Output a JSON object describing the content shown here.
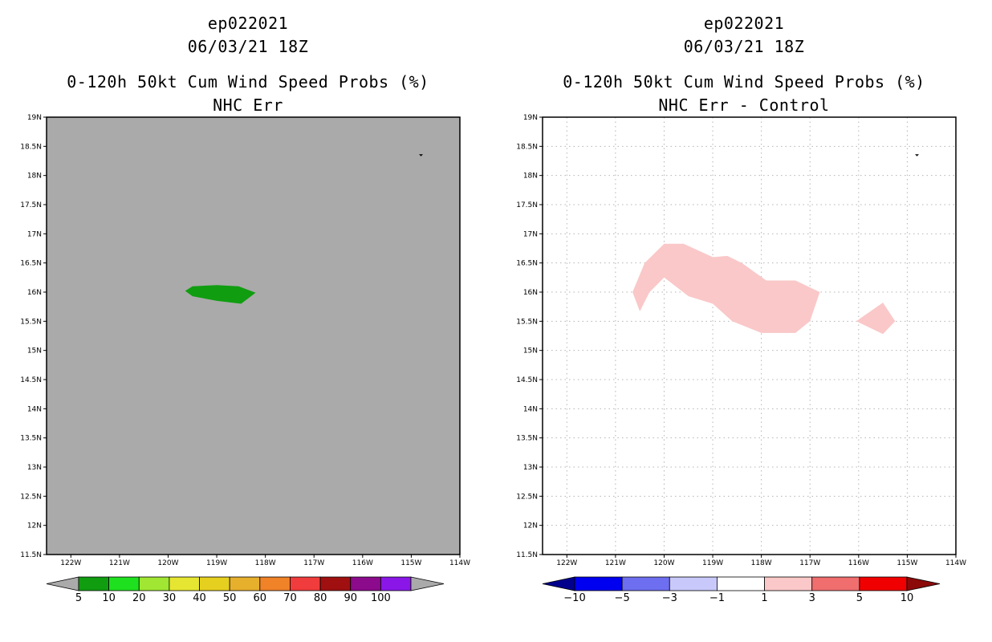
{
  "chart_data": [
    {
      "type": "map-contour",
      "title_lines": [
        "ep022021",
        "06/03/21 18Z",
        "0-120h 50kt Cum Wind Speed Probs (%)",
        "NHC Err"
      ],
      "background": "#aaaaaa",
      "grid": false,
      "xlim": [
        -122.5,
        -114
      ],
      "ylim": [
        11.5,
        19
      ],
      "x_ticks": [
        {
          "v": -122,
          "label": "122W"
        },
        {
          "v": -121,
          "label": "121W"
        },
        {
          "v": -120,
          "label": "120W"
        },
        {
          "v": -119,
          "label": "119W"
        },
        {
          "v": -118,
          "label": "118W"
        },
        {
          "v": -117,
          "label": "117W"
        },
        {
          "v": -116,
          "label": "116W"
        },
        {
          "v": -115,
          "label": "115W"
        },
        {
          "v": -114,
          "label": "114W"
        }
      ],
      "y_ticks": [
        {
          "v": 11.5,
          "label": "11.5N"
        },
        {
          "v": 12,
          "label": "12N"
        },
        {
          "v": 12.5,
          "label": "12.5N"
        },
        {
          "v": 13,
          "label": "13N"
        },
        {
          "v": 13.5,
          "label": "13.5N"
        },
        {
          "v": 14,
          "label": "14N"
        },
        {
          "v": 14.5,
          "label": "14.5N"
        },
        {
          "v": 15,
          "label": "15N"
        },
        {
          "v": 15.5,
          "label": "15.5N"
        },
        {
          "v": 16,
          "label": "16N"
        },
        {
          "v": 16.5,
          "label": "16.5N"
        },
        {
          "v": 17,
          "label": "17N"
        },
        {
          "v": 17.5,
          "label": "17.5N"
        },
        {
          "v": 18,
          "label": "18N"
        },
        {
          "v": 18.5,
          "label": "18.5N"
        },
        {
          "v": 19,
          "label": "19N"
        }
      ],
      "regions": [
        {
          "name": "5-10 %",
          "color": "#109d10",
          "points": [
            [
              -119.65,
              16.02
            ],
            [
              -119.5,
              16.1
            ],
            [
              -119.0,
              16.12
            ],
            [
              -118.55,
              16.1
            ],
            [
              -118.2,
              15.99
            ],
            [
              -118.5,
              15.8
            ],
            [
              -119.0,
              15.85
            ],
            [
              -119.5,
              15.93
            ]
          ]
        }
      ],
      "markers": [
        {
          "lon": -114.8,
          "lat": 18.35
        }
      ],
      "colorbar": {
        "under_color": "#aaaaaa",
        "over_color": "#aaaaaa",
        "colors": [
          "#109d10",
          "#1fe01f",
          "#a0e632",
          "#e6e632",
          "#e6d01f",
          "#e6b02d",
          "#f08228",
          "#f03c3c",
          "#a01010",
          "#8c0a8c",
          "#8a17e8"
        ],
        "labels": [
          "5",
          "10",
          "20",
          "30",
          "40",
          "50",
          "60",
          "70",
          "80",
          "90",
          "100"
        ]
      }
    },
    {
      "type": "map-contour",
      "title_lines": [
        "ep022021",
        "06/03/21 18Z",
        "0-120h 50kt Cum Wind Speed Probs (%)",
        "NHC Err - Control"
      ],
      "background": "#ffffff",
      "grid": true,
      "xlim": [
        -122.5,
        -114
      ],
      "ylim": [
        11.5,
        19
      ],
      "x_ticks": [
        {
          "v": -122,
          "label": "122W"
        },
        {
          "v": -121,
          "label": "121W"
        },
        {
          "v": -120,
          "label": "120W"
        },
        {
          "v": -119,
          "label": "119W"
        },
        {
          "v": -118,
          "label": "118W"
        },
        {
          "v": -117,
          "label": "117W"
        },
        {
          "v": -116,
          "label": "116W"
        },
        {
          "v": -115,
          "label": "115W"
        },
        {
          "v": -114,
          "label": "114W"
        }
      ],
      "y_ticks": [
        {
          "v": 11.5,
          "label": "11.5N"
        },
        {
          "v": 12,
          "label": "12N"
        },
        {
          "v": 12.5,
          "label": "12.5N"
        },
        {
          "v": 13,
          "label": "13N"
        },
        {
          "v": 13.5,
          "label": "13.5N"
        },
        {
          "v": 14,
          "label": "14N"
        },
        {
          "v": 14.5,
          "label": "14.5N"
        },
        {
          "v": 15,
          "label": "15N"
        },
        {
          "v": 15.5,
          "label": "15.5N"
        },
        {
          "v": 16,
          "label": "16N"
        },
        {
          "v": 16.5,
          "label": "16.5N"
        },
        {
          "v": 17,
          "label": "17N"
        },
        {
          "v": 17.5,
          "label": "17.5N"
        },
        {
          "v": 18,
          "label": "18N"
        },
        {
          "v": 18.5,
          "label": "18.5N"
        },
        {
          "v": 19,
          "label": "19N"
        }
      ],
      "regions": [
        {
          "name": "1-3 difference (west)",
          "color": "#fac8c8",
          "points": [
            [
              -120.65,
              16.0
            ],
            [
              -120.4,
              16.5
            ],
            [
              -120.0,
              16.83
            ],
            [
              -119.6,
              16.83
            ],
            [
              -119.0,
              16.6
            ],
            [
              -118.7,
              16.62
            ],
            [
              -118.4,
              16.5
            ],
            [
              -117.9,
              16.2
            ],
            [
              -117.3,
              16.2
            ],
            [
              -116.8,
              16.0
            ],
            [
              -117.0,
              15.5
            ],
            [
              -117.3,
              15.3
            ],
            [
              -118.0,
              15.3
            ],
            [
              -118.6,
              15.5
            ],
            [
              -119.0,
              15.8
            ],
            [
              -119.5,
              15.93
            ],
            [
              -120.0,
              16.25
            ],
            [
              -120.3,
              16.0
            ],
            [
              -120.5,
              15.67
            ]
          ]
        },
        {
          "name": "1-3 difference (east)",
          "color": "#fac8c8",
          "points": [
            [
              -116.05,
              15.5
            ],
            [
              -115.5,
              15.82
            ],
            [
              -115.25,
              15.5
            ],
            [
              -115.5,
              15.28
            ]
          ]
        }
      ],
      "markers": [
        {
          "lon": -114.8,
          "lat": 18.35
        }
      ],
      "colorbar": {
        "under_color": "#00008c",
        "over_color": "#8c0a0a",
        "colors": [
          "#0000f0",
          "#6e6ef0",
          "#c8c8fa",
          "#ffffff",
          "#fac8c8",
          "#f06e6e",
          "#f00000"
        ],
        "labels": [
          "-10",
          "-5",
          "-3",
          "-1",
          "1",
          "3",
          "5",
          "10"
        ]
      }
    }
  ]
}
